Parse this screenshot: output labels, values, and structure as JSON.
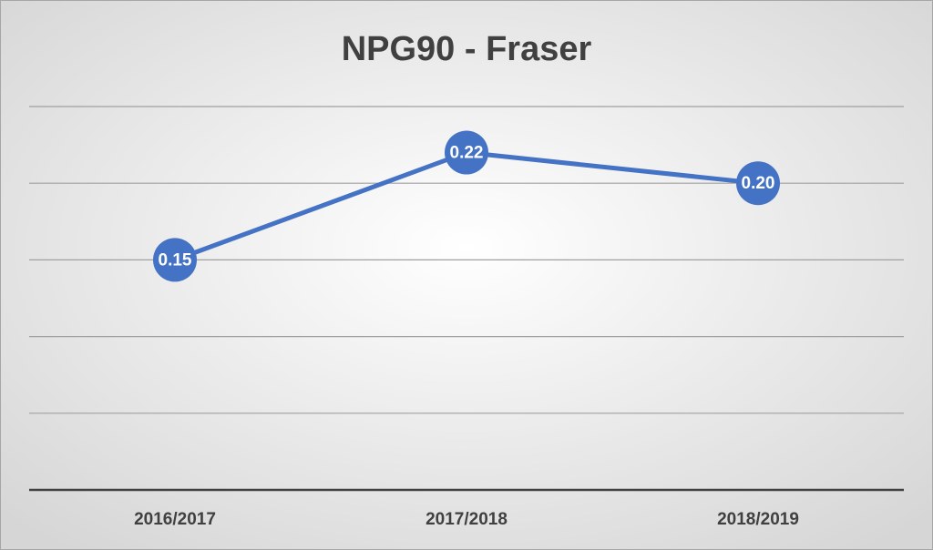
{
  "chart_data": {
    "type": "line",
    "title": "NPG90 - Fraser",
    "categories": [
      "2016/2017",
      "2017/2018",
      "2018/2019"
    ],
    "series": [
      {
        "color": "#4472c4",
        "values": [
          0.15,
          0.22,
          0.2
        ],
        "value_labels": [
          "0.15",
          "0.22",
          "0.20"
        ]
      }
    ],
    "ylim": [
      0,
      0.25
    ],
    "yticks": [
      0,
      0.05,
      0.1,
      0.15,
      0.2,
      0.25
    ],
    "grid": true
  }
}
